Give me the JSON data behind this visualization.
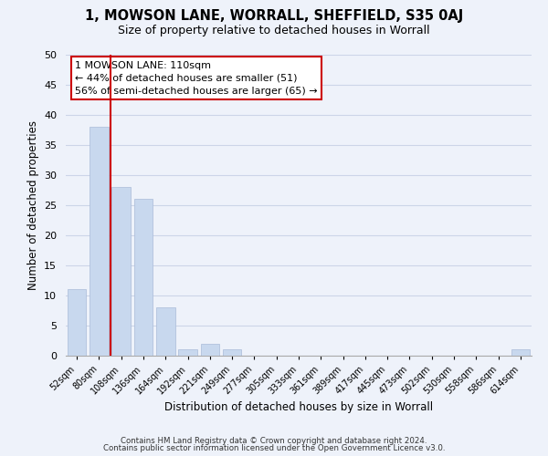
{
  "title": "1, MOWSON LANE, WORRALL, SHEFFIELD, S35 0AJ",
  "subtitle": "Size of property relative to detached houses in Worrall",
  "xlabel": "Distribution of detached houses by size in Worrall",
  "ylabel": "Number of detached properties",
  "bin_labels": [
    "52sqm",
    "80sqm",
    "108sqm",
    "136sqm",
    "164sqm",
    "192sqm",
    "221sqm",
    "249sqm",
    "277sqm",
    "305sqm",
    "333sqm",
    "361sqm",
    "389sqm",
    "417sqm",
    "445sqm",
    "473sqm",
    "502sqm",
    "530sqm",
    "558sqm",
    "586sqm",
    "614sqm"
  ],
  "bar_values": [
    11,
    38,
    28,
    26,
    8,
    1,
    2,
    1,
    0,
    0,
    0,
    0,
    0,
    0,
    0,
    0,
    0,
    0,
    0,
    0,
    1
  ],
  "bar_color": "#c8d8ee",
  "bar_edge_color": "#aabbd8",
  "property_line_color": "#cc0000",
  "ylim": [
    0,
    50
  ],
  "yticks": [
    0,
    5,
    10,
    15,
    20,
    25,
    30,
    35,
    40,
    45,
    50
  ],
  "annotation_title": "1 MOWSON LANE: 110sqm",
  "annotation_line1": "← 44% of detached houses are smaller (51)",
  "annotation_line2": "56% of semi-detached houses are larger (65) →",
  "footer_line1": "Contains HM Land Registry data © Crown copyright and database right 2024.",
  "footer_line2": "Contains public sector information licensed under the Open Government Licence v3.0.",
  "grid_color": "#ccd5e8",
  "background_color": "#eef2fa"
}
